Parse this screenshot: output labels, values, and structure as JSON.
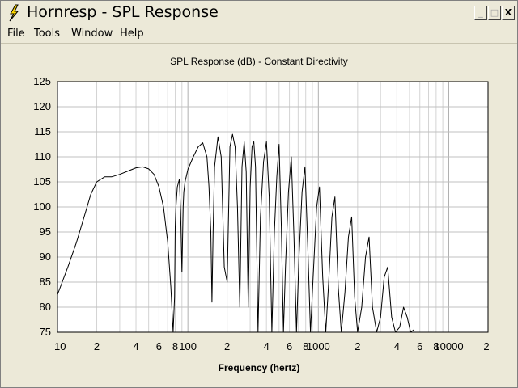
{
  "window": {
    "title": "Hornresp - SPL Response",
    "minimize_label": "_",
    "maximize_label": "□",
    "close_label": "X"
  },
  "menu": {
    "items": [
      "File",
      "Tools",
      "Window",
      "Help"
    ]
  },
  "chart_data": {
    "type": "line",
    "title": "SPL Response (dB) - Constant Directivity",
    "xlabel": "Frequency (hertz)",
    "ylabel": "",
    "x_scale": "log",
    "xlim": [
      10,
      20000
    ],
    "ylim": [
      75,
      125
    ],
    "grid": true,
    "y_ticks": [
      75,
      80,
      85,
      90,
      95,
      100,
      105,
      110,
      115,
      120,
      125
    ],
    "x_ticks": [
      {
        "value": 10,
        "label": "10"
      },
      {
        "value": 20,
        "label": "2"
      },
      {
        "value": 40,
        "label": "4"
      },
      {
        "value": 60,
        "label": "6"
      },
      {
        "value": 80,
        "label": "8"
      },
      {
        "value": 100,
        "label": "100"
      },
      {
        "value": 200,
        "label": "2"
      },
      {
        "value": 400,
        "label": "4"
      },
      {
        "value": 600,
        "label": "6"
      },
      {
        "value": 800,
        "label": "8"
      },
      {
        "value": 1000,
        "label": "1000"
      },
      {
        "value": 2000,
        "label": "2"
      },
      {
        "value": 4000,
        "label": "4"
      },
      {
        "value": 6000,
        "label": "6"
      },
      {
        "value": 8000,
        "label": "8"
      },
      {
        "value": 10000,
        "label": "10000"
      },
      {
        "value": 20000,
        "label": "2"
      }
    ],
    "series": [
      {
        "values_x": [
          10,
          12,
          14,
          16,
          18,
          20,
          23,
          26,
          30,
          35,
          40,
          45,
          50,
          55,
          60,
          65,
          70,
          74,
          77,
          79,
          80,
          81,
          83,
          86,
          88,
          90,
          92,
          93,
          95,
          100,
          110,
          120,
          130,
          140,
          145,
          150,
          153,
          156,
          160,
          170,
          180,
          190,
          200,
          210,
          220,
          230,
          240,
          250,
          260,
          270,
          280,
          290,
          300,
          310,
          320,
          330,
          345,
          360,
          380,
          400,
          420,
          440,
          460,
          480,
          500,
          520,
          540,
          560,
          590,
          620,
          650,
          680,
          710,
          750,
          790,
          830,
          870,
          920,
          970,
          1020,
          1080,
          1140,
          1200,
          1270,
          1340,
          1420,
          1500,
          1600,
          1700,
          1800,
          1900,
          2000,
          2150,
          2300,
          2450,
          2600,
          2800,
          3000,
          3200,
          3400,
          3650,
          3900,
          4200,
          4500,
          4800,
          5100,
          5400
        ],
        "values_y": [
          82.5,
          88,
          93,
          98,
          102.5,
          105,
          106,
          106,
          106.5,
          107.2,
          107.8,
          108,
          107.6,
          106.5,
          104,
          100,
          93,
          84,
          75,
          82,
          96,
          100,
          104,
          105.5,
          99,
          87,
          100,
          103,
          105,
          107.5,
          110,
          112,
          112.8,
          110,
          104,
          95,
          81,
          95,
          108,
          114,
          110,
          88,
          85,
          112,
          114.5,
          112,
          100,
          80,
          108,
          113,
          107,
          80,
          104,
          112,
          113,
          108,
          75,
          98,
          109,
          113,
          102,
          75,
          95,
          106,
          112.5,
          96,
          75,
          88,
          103,
          110,
          94,
          75,
          90,
          103,
          108,
          92,
          75,
          88,
          100,
          104,
          86,
          75,
          85,
          98,
          102,
          84,
          75,
          83,
          94,
          98,
          82,
          75,
          80,
          90,
          94,
          80,
          75,
          78,
          86,
          88,
          78,
          75,
          76,
          80,
          78,
          75,
          75.5
        ]
      }
    ]
  }
}
